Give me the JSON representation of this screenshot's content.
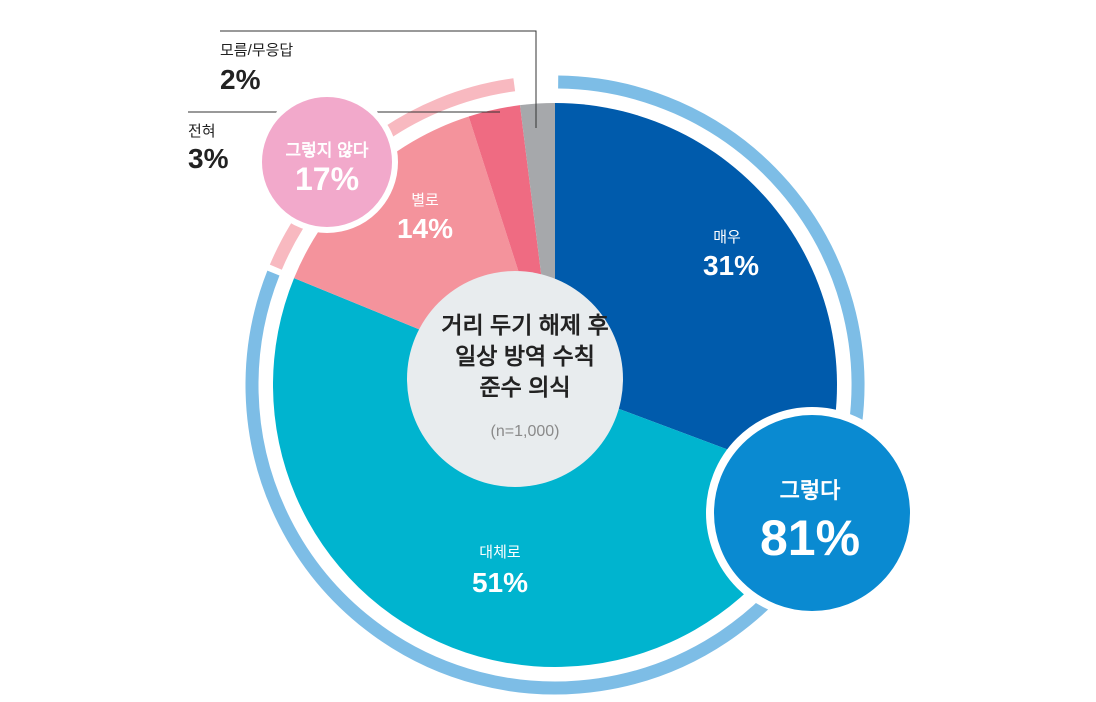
{
  "chart_data": {
    "type": "pie",
    "title": "거리 두기 해제 후\n일상 방역 수칙\n준수 의식",
    "title_lines": [
      "거리 두기 해제 후",
      "일상 방역 수칙",
      "준수 의식"
    ],
    "subtitle": "(n=1,000)",
    "slices": [
      {
        "label": "매우",
        "value": 31,
        "value_text": "31%",
        "color": "#005bac"
      },
      {
        "label": "대체로",
        "value": 51,
        "value_text": "51%",
        "color": "#00b4cf"
      },
      {
        "label": "별로",
        "value": 14,
        "value_text": "14%",
        "color": "#f4939c"
      },
      {
        "label": "전혀",
        "value": 3,
        "value_text": "3%",
        "color": "#ef6b82"
      },
      {
        "label": "모름/무응답",
        "value": 2,
        "value_text": "2%",
        "color": "#a6a8ab"
      }
    ],
    "groups": [
      {
        "label": "그렇다",
        "value": 81,
        "value_text": "81%",
        "color": "#0a8ad1",
        "ring_color": "#7dbde6"
      },
      {
        "label": "그렇지 않다",
        "value": 17,
        "value_text": "17%",
        "color": "#f2a9cb",
        "ring_color": "#f8b9c0"
      }
    ],
    "center_color": "#e8ecee",
    "legend": "none"
  }
}
